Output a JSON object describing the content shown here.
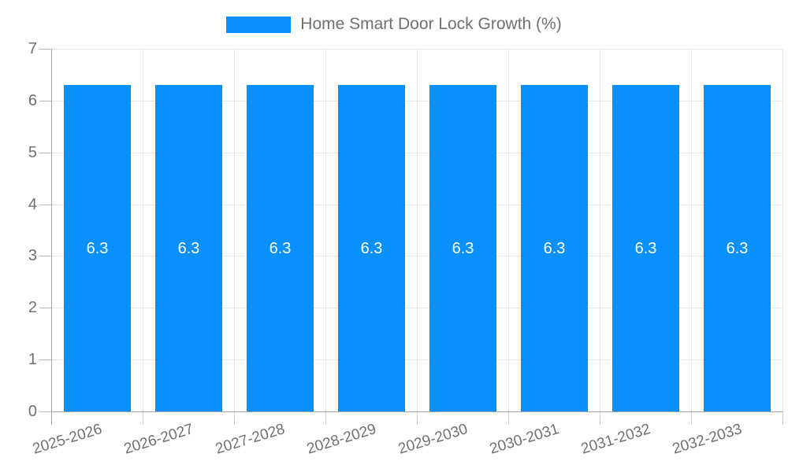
{
  "chart_data": {
    "type": "bar",
    "title": "Home Smart Door Lock Growth (%)",
    "legend": {
      "label": "Home Smart Door Lock Growth (%)",
      "position": "top-center"
    },
    "categories": [
      "2025-2026",
      "2026-2027",
      "2027-2028",
      "2028-2029",
      "2029-2030",
      "2030-2031",
      "2031-2032",
      "2032-2033"
    ],
    "series": [
      {
        "name": "Home Smart Door Lock Growth (%)",
        "values": [
          6.3,
          6.3,
          6.3,
          6.3,
          6.3,
          6.3,
          6.3,
          6.3
        ],
        "labels": [
          "6.3",
          "6.3",
          "6.3",
          "6.3",
          "6.3",
          "6.3",
          "6.3",
          "6.3"
        ]
      }
    ],
    "xlabel": "",
    "ylabel": "",
    "ylim": [
      0,
      7
    ],
    "yticks": [
      0,
      1,
      2,
      3,
      4,
      5,
      6,
      7
    ],
    "grid": true,
    "x_label_rotation_deg": -17,
    "colors": {
      "bar": "#0a90fa",
      "bar_label": "#ffffff",
      "grid": "#e6e6e6",
      "axis": "#a6a6a6",
      "y_tick_mark": "#b4b4b4",
      "x_tick_mark": "#cccccc",
      "text": "#707070",
      "background": "#ffffff"
    }
  }
}
